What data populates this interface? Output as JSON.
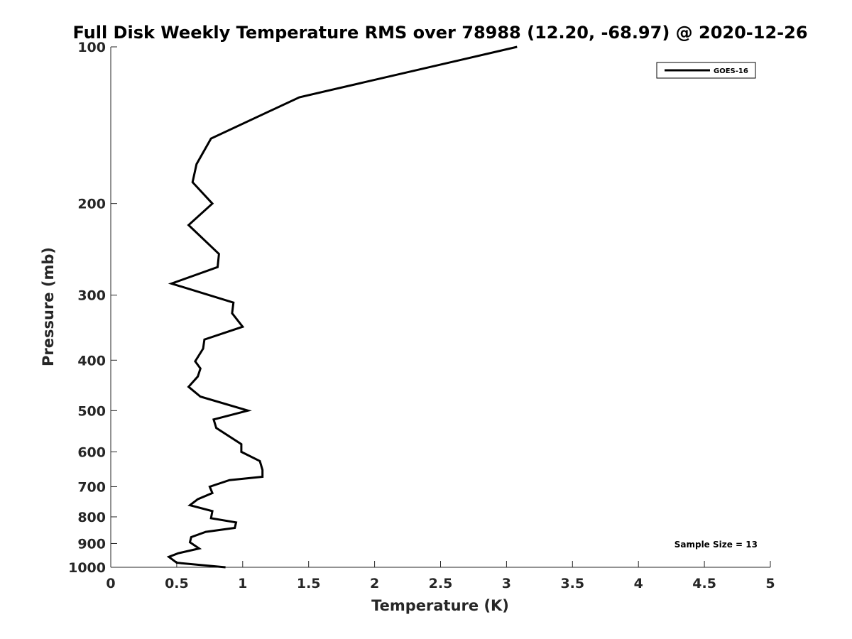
{
  "chart_data": {
    "type": "line",
    "title": "Full Disk Weekly Temperature RMS over 78988 (12.20, -68.97) @ 2020-12-26",
    "xlabel": "Temperature (K)",
    "ylabel": "Pressure (mb)",
    "xlim": [
      0,
      5
    ],
    "ylim": [
      100,
      1000
    ],
    "y_scale": "log",
    "y_reversed": true,
    "x_ticks": [
      "0",
      "0.5",
      "1",
      "1.5",
      "2",
      "2.5",
      "3",
      "3.5",
      "4",
      "4.5",
      "5"
    ],
    "y_ticks": [
      "100",
      "200",
      "300",
      "400",
      "500",
      "600",
      "700",
      "800",
      "900",
      "1000"
    ],
    "grid": false,
    "legend_position": "top-right",
    "annotation": "Sample Size = 13",
    "line_color": "#000000",
    "series": [
      {
        "name": "GOES-16",
        "x": [
          3.08,
          1.43,
          0.76,
          0.65,
          0.62,
          0.77,
          0.59,
          0.82,
          0.81,
          0.46,
          0.93,
          0.92,
          1.0,
          0.71,
          0.7,
          0.64,
          0.68,
          0.66,
          0.59,
          0.68,
          1.04,
          0.78,
          0.8,
          0.99,
          0.99,
          1.13,
          1.15,
          1.15,
          0.9,
          0.75,
          0.77,
          0.66,
          0.6,
          0.77,
          0.76,
          0.95,
          0.94,
          0.72,
          0.61,
          0.6,
          0.67,
          0.51,
          0.44,
          0.5,
          0.87
        ],
        "y": [
          100,
          125,
          150,
          168,
          182,
          200,
          220,
          250,
          265,
          285,
          310,
          325,
          345,
          365,
          380,
          402,
          415,
          430,
          450,
          470,
          500,
          520,
          540,
          580,
          600,
          625,
          650,
          670,
          680,
          700,
          720,
          740,
          760,
          780,
          805,
          820,
          840,
          855,
          875,
          895,
          920,
          940,
          955,
          980,
          1000
        ]
      }
    ]
  }
}
